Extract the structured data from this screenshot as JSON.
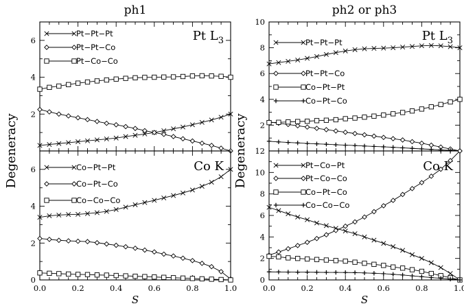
{
  "figure": {
    "ylabel": "Degeneracy",
    "columns": [
      {
        "title": "ph1",
        "xlabel": "S"
      },
      {
        "title": "ph2 or ph3",
        "xlabel": "S"
      }
    ]
  },
  "chart_data": [
    {
      "type": "line",
      "title": "ph1",
      "edge": "Pt L3",
      "xlim": [
        0,
        1.0
      ],
      "ylim": [
        0,
        7
      ],
      "yticks": [
        2,
        4,
        6
      ],
      "xticks": [
        0.0,
        0.2,
        0.4,
        0.6,
        0.8,
        1.0
      ],
      "ylabel": "Degeneracy",
      "series": [
        {
          "name": "Pt−Pt−Pt",
          "marker": "x",
          "x": [
            0,
            0.05,
            0.1,
            0.15,
            0.2,
            0.25,
            0.3,
            0.35,
            0.4,
            0.45,
            0.5,
            0.55,
            0.6,
            0.65,
            0.7,
            0.75,
            0.8,
            0.85,
            0.9,
            0.95,
            1.0
          ],
          "y": [
            0.3,
            0.35,
            0.4,
            0.45,
            0.5,
            0.55,
            0.6,
            0.65,
            0.7,
            0.78,
            0.85,
            0.92,
            1.0,
            1.1,
            1.2,
            1.3,
            1.42,
            1.55,
            1.68,
            1.83,
            2.0
          ]
        },
        {
          "name": "Pt−Pt−Co",
          "marker": "diamond",
          "x": [
            0,
            0.05,
            0.1,
            0.15,
            0.2,
            0.25,
            0.3,
            0.35,
            0.4,
            0.45,
            0.5,
            0.55,
            0.6,
            0.65,
            0.7,
            0.75,
            0.8,
            0.85,
            0.9,
            0.95,
            1.0
          ],
          "y": [
            2.25,
            2.12,
            2.0,
            1.9,
            1.8,
            1.7,
            1.6,
            1.5,
            1.42,
            1.32,
            1.22,
            1.1,
            1.0,
            0.9,
            0.78,
            0.66,
            0.54,
            0.42,
            0.3,
            0.15,
            0.0
          ]
        },
        {
          "name": "Pt−Co−Co",
          "marker": "square",
          "x": [
            0,
            0.05,
            0.1,
            0.15,
            0.2,
            0.25,
            0.3,
            0.35,
            0.4,
            0.45,
            0.5,
            0.55,
            0.6,
            0.65,
            0.7,
            0.75,
            0.8,
            0.85,
            0.9,
            0.95,
            1.0
          ],
          "y": [
            3.35,
            3.45,
            3.52,
            3.6,
            3.68,
            3.74,
            3.8,
            3.85,
            3.9,
            3.94,
            3.97,
            3.99,
            4.0,
            4.01,
            4.02,
            4.04,
            4.07,
            4.08,
            4.07,
            4.05,
            4.0
          ]
        }
      ]
    },
    {
      "type": "line",
      "title": "ph1",
      "edge": "Co K",
      "xlim": [
        0,
        1.0
      ],
      "ylim": [
        0,
        7
      ],
      "yticks": [
        0,
        2,
        4,
        6
      ],
      "xticks": [
        0.0,
        0.2,
        0.4,
        0.6,
        0.8,
        1.0
      ],
      "xlabel": "S",
      "ylabel": "Degeneracy",
      "series": [
        {
          "name": "Co−Pt−Pt",
          "marker": "x",
          "x": [
            0,
            0.05,
            0.1,
            0.15,
            0.2,
            0.25,
            0.3,
            0.35,
            0.4,
            0.45,
            0.5,
            0.55,
            0.6,
            0.65,
            0.7,
            0.75,
            0.8,
            0.85,
            0.9,
            0.95,
            1.0
          ],
          "y": [
            3.4,
            3.48,
            3.52,
            3.55,
            3.56,
            3.6,
            3.65,
            3.72,
            3.82,
            3.95,
            4.08,
            4.2,
            4.32,
            4.45,
            4.58,
            4.72,
            4.88,
            5.08,
            5.3,
            5.6,
            6.0
          ]
        },
        {
          "name": "Co−Pt−Co",
          "marker": "diamond",
          "x": [
            0,
            0.05,
            0.1,
            0.15,
            0.2,
            0.25,
            0.3,
            0.35,
            0.4,
            0.45,
            0.5,
            0.55,
            0.6,
            0.65,
            0.7,
            0.75,
            0.8,
            0.85,
            0.9,
            0.95,
            1.0
          ],
          "y": [
            2.25,
            2.2,
            2.15,
            2.12,
            2.1,
            2.08,
            2.02,
            1.95,
            1.88,
            1.8,
            1.72,
            1.62,
            1.52,
            1.4,
            1.3,
            1.18,
            1.05,
            0.9,
            0.72,
            0.45,
            0.05
          ]
        },
        {
          "name": "Co−Co−Co",
          "marker": "square",
          "x": [
            0,
            0.05,
            0.1,
            0.15,
            0.2,
            0.25,
            0.3,
            0.35,
            0.4,
            0.45,
            0.5,
            0.55,
            0.6,
            0.65,
            0.7,
            0.75,
            0.8,
            0.85,
            0.9,
            0.95,
            1.0
          ],
          "y": [
            0.38,
            0.36,
            0.34,
            0.32,
            0.3,
            0.29,
            0.27,
            0.26,
            0.24,
            0.22,
            0.2,
            0.18,
            0.16,
            0.14,
            0.12,
            0.1,
            0.08,
            0.06,
            0.04,
            0.02,
            0.0
          ]
        }
      ]
    },
    {
      "type": "line",
      "title": "ph2 or ph3",
      "edge": "Pt L3",
      "xlim": [
        0,
        1.0
      ],
      "ylim": [
        0,
        10
      ],
      "yticks": [
        2,
        4,
        6,
        8,
        10
      ],
      "xticks": [
        0.0,
        0.2,
        0.4,
        0.6,
        0.8,
        1.0
      ],
      "ylabel": "Degeneracy",
      "series": [
        {
          "name": "Pt−Pt−Pt",
          "marker": "x",
          "x": [
            0,
            0.05,
            0.1,
            0.15,
            0.2,
            0.25,
            0.3,
            0.35,
            0.4,
            0.45,
            0.5,
            0.55,
            0.6,
            0.65,
            0.7,
            0.75,
            0.8,
            0.85,
            0.9,
            0.95,
            1.0
          ],
          "y": [
            6.75,
            6.85,
            6.95,
            7.05,
            7.18,
            7.32,
            7.48,
            7.62,
            7.75,
            7.85,
            7.92,
            7.95,
            7.97,
            8.0,
            8.05,
            8.1,
            8.15,
            8.18,
            8.15,
            8.08,
            8.0
          ]
        },
        {
          "name": "Pt−Pt−Co",
          "marker": "diamond",
          "x": [
            0,
            0.05,
            0.1,
            0.15,
            0.2,
            0.25,
            0.3,
            0.35,
            0.4,
            0.45,
            0.5,
            0.55,
            0.6,
            0.65,
            0.7,
            0.75,
            0.8,
            0.85,
            0.9,
            0.95,
            1.0
          ],
          "y": [
            2.25,
            2.15,
            2.05,
            1.95,
            1.85,
            1.75,
            1.65,
            1.55,
            1.45,
            1.35,
            1.25,
            1.15,
            1.05,
            0.95,
            0.85,
            0.72,
            0.6,
            0.45,
            0.3,
            0.15,
            0.0
          ]
        },
        {
          "name": "Co−Pt−Pt",
          "marker": "square",
          "x": [
            0,
            0.05,
            0.1,
            0.15,
            0.2,
            0.25,
            0.3,
            0.35,
            0.4,
            0.45,
            0.5,
            0.55,
            0.6,
            0.65,
            0.7,
            0.75,
            0.8,
            0.85,
            0.9,
            0.95,
            1.0
          ],
          "y": [
            2.2,
            2.22,
            2.25,
            2.28,
            2.3,
            2.35,
            2.38,
            2.42,
            2.5,
            2.55,
            2.62,
            2.7,
            2.78,
            2.88,
            2.98,
            3.1,
            3.25,
            3.42,
            3.6,
            3.8,
            4.0
          ]
        },
        {
          "name": "Co−Pt−Co",
          "marker": "plus",
          "x": [
            0,
            0.05,
            0.1,
            0.15,
            0.2,
            0.25,
            0.3,
            0.35,
            0.4,
            0.45,
            0.5,
            0.55,
            0.6,
            0.65,
            0.7,
            0.75,
            0.8,
            0.85,
            0.9,
            0.95,
            1.0
          ],
          "y": [
            0.75,
            0.7,
            0.66,
            0.62,
            0.58,
            0.55,
            0.52,
            0.48,
            0.45,
            0.42,
            0.38,
            0.35,
            0.32,
            0.28,
            0.24,
            0.2,
            0.16,
            0.12,
            0.08,
            0.04,
            0.0
          ]
        }
      ]
    },
    {
      "type": "line",
      "title": "ph2 or ph3",
      "edge": "Co K",
      "xlim": [
        0,
        1.0
      ],
      "ylim": [
        0,
        12
      ],
      "yticks": [
        0,
        2,
        4,
        6,
        8,
        10,
        12
      ],
      "xticks": [
        0.0,
        0.2,
        0.4,
        0.6,
        0.8,
        1.0
      ],
      "xlabel": "S",
      "ylabel": "Degeneracy",
      "series": [
        {
          "name": "Pt−Co−Pt",
          "marker": "x",
          "x": [
            0,
            0.05,
            0.1,
            0.15,
            0.2,
            0.25,
            0.3,
            0.35,
            0.4,
            0.45,
            0.5,
            0.55,
            0.6,
            0.65,
            0.7,
            0.75,
            0.8,
            0.85,
            0.9,
            0.95,
            1.0
          ],
          "y": [
            6.75,
            6.45,
            6.15,
            5.85,
            5.6,
            5.3,
            5.05,
            4.8,
            4.55,
            4.3,
            4.0,
            3.7,
            3.4,
            3.1,
            2.75,
            2.35,
            2.0,
            1.6,
            1.15,
            0.6,
            0.0
          ]
        },
        {
          "name": "Pt−Co−Co",
          "marker": "diamond",
          "x": [
            0,
            0.05,
            0.1,
            0.15,
            0.2,
            0.25,
            0.3,
            0.35,
            0.4,
            0.45,
            0.5,
            0.55,
            0.6,
            0.65,
            0.7,
            0.75,
            0.8,
            0.85,
            0.9,
            0.95,
            1.0
          ],
          "y": [
            2.3,
            2.6,
            2.9,
            3.2,
            3.5,
            3.85,
            4.2,
            4.6,
            5.0,
            5.4,
            5.85,
            6.35,
            6.9,
            7.4,
            7.95,
            8.5,
            9.05,
            9.65,
            10.3,
            11.1,
            12.0
          ]
        },
        {
          "name": "Co−Pt−Co",
          "marker": "square",
          "x": [
            0,
            0.05,
            0.1,
            0.15,
            0.2,
            0.25,
            0.3,
            0.35,
            0.4,
            0.45,
            0.5,
            0.55,
            0.6,
            0.65,
            0.7,
            0.75,
            0.8,
            0.85,
            0.9,
            0.95,
            1.0
          ],
          "y": [
            2.2,
            2.15,
            2.05,
            2.0,
            1.95,
            1.9,
            1.85,
            1.8,
            1.75,
            1.65,
            1.55,
            1.45,
            1.35,
            1.2,
            1.1,
            0.95,
            0.8,
            0.6,
            0.4,
            0.2,
            0.0
          ]
        },
        {
          "name": "Co−Co−Co",
          "marker": "plus",
          "x": [
            0,
            0.05,
            0.1,
            0.15,
            0.2,
            0.25,
            0.3,
            0.35,
            0.4,
            0.45,
            0.5,
            0.55,
            0.6,
            0.65,
            0.7,
            0.75,
            0.8,
            0.85,
            0.9,
            0.95,
            1.0
          ],
          "y": [
            0.75,
            0.74,
            0.73,
            0.72,
            0.72,
            0.71,
            0.7,
            0.7,
            0.69,
            0.68,
            0.65,
            0.62,
            0.58,
            0.52,
            0.46,
            0.38,
            0.3,
            0.22,
            0.15,
            0.08,
            0.0
          ]
        }
      ]
    }
  ]
}
